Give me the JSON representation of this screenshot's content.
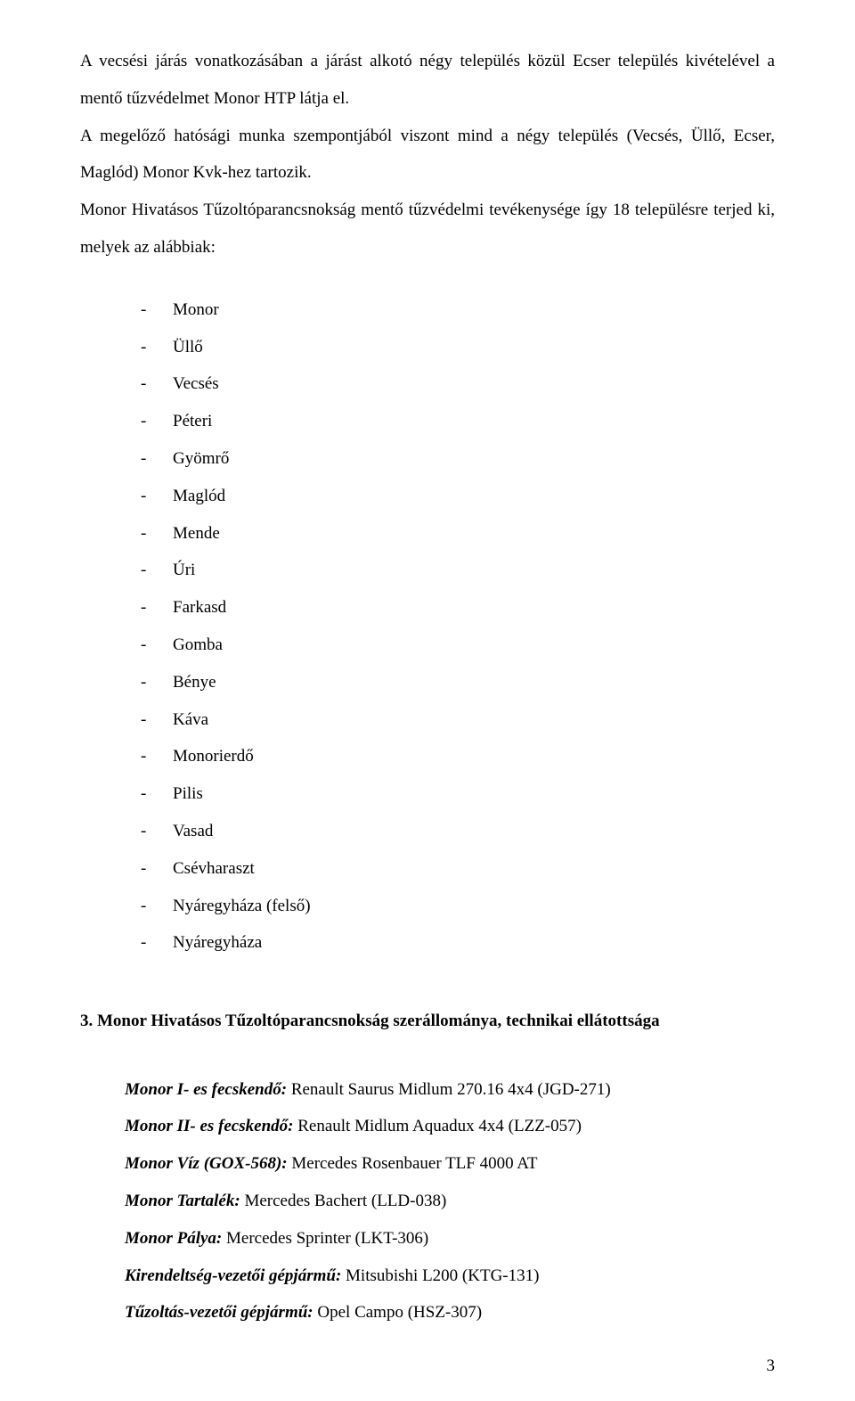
{
  "intro": {
    "p1": "A vecsési járás vonatkozásában a járást alkotó négy település közül Ecser település kivételével a mentő tűzvédelmet Monor HTP látja el.",
    "p2": "A megelőző hatósági munka szempontjából viszont mind a négy település (Vecsés, Üllő, Ecser, Maglód) Monor Kvk-hez tartozik.",
    "p3": "Monor Hivatásos Tűzoltóparancsnokság mentő tűzvédelmi tevékenysége így 18 településre terjed ki, melyek az alábbiak:"
  },
  "settlements": [
    "Monor",
    "Üllő",
    "Vecsés",
    "Péteri",
    "Gyömrő",
    "Maglód",
    "Mende",
    "Úri",
    "Farkasd",
    "Gomba",
    "Bénye",
    "Káva",
    "Monorierdő",
    "Pilis",
    "Vasad",
    "Csévharaszt",
    "Nyáregyháza (felső)",
    "Nyáregyháza"
  ],
  "section3_heading": "3. Monor Hivatásos Tűzoltóparancsnokság szerállománya, technikai ellátottsága",
  "equipment": [
    {
      "label": "Monor I- es fecskendő:",
      "value": " Renault Saurus Midlum 270.16 4x4 (JGD-271)"
    },
    {
      "label": "Monor II- es fecskendő:",
      "value": " Renault Midlum Aquadux 4x4 (LZZ-057)"
    },
    {
      "label": "Monor Víz (GOX-568):",
      "value": " Mercedes Rosenbauer TLF 4000 AT"
    },
    {
      "label": "Monor Tartalék:",
      "value": " Mercedes Bachert (LLD-038)"
    },
    {
      "label": "Monor Pálya:",
      "value": " Mercedes Sprinter (LKT-306)"
    },
    {
      "label": "Kirendeltség-vezetői gépjármű:",
      "value": " Mitsubishi L200 (KTG-131)"
    },
    {
      "label": "Tűzoltás-vezetői gépjármű:",
      "value": " Opel Campo (HSZ-307)"
    }
  ],
  "page_number": "3"
}
